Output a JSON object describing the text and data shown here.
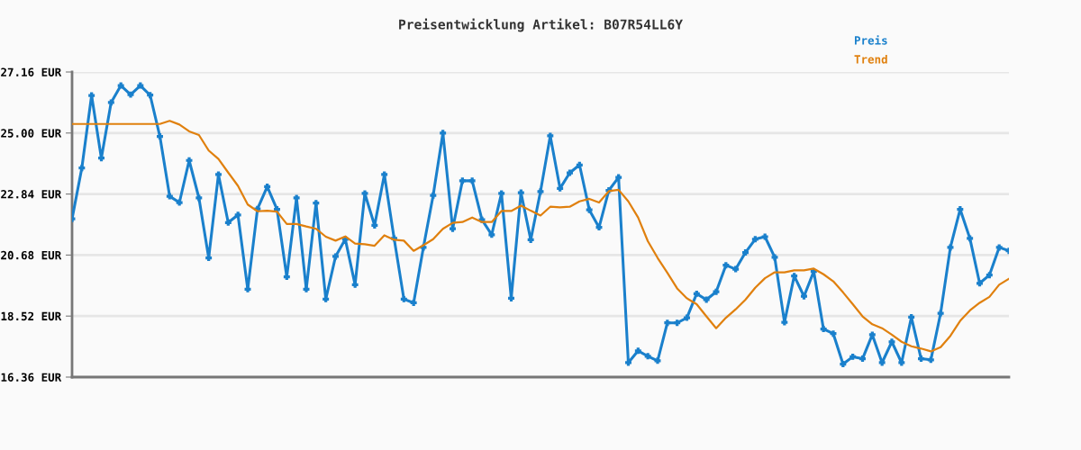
{
  "chart_data": {
    "type": "line",
    "title": "Preisentwicklung Artikel: B07R54LL6Y",
    "categories": [
      null,
      null,
      null,
      null,
      null,
      null,
      null,
      null,
      null,
      null,
      null,
      null,
      null,
      null,
      null,
      null,
      null,
      null,
      null,
      null,
      null,
      null,
      null,
      null,
      null,
      null,
      null,
      null,
      null,
      null,
      null,
      null,
      null,
      null,
      null,
      null,
      null,
      null,
      null,
      null,
      null,
      null,
      null,
      null,
      null,
      null,
      null,
      null,
      null,
      null,
      null,
      null,
      null,
      null,
      null,
      null,
      null,
      null,
      null,
      null,
      null,
      null,
      null,
      null,
      null,
      null,
      null,
      null,
      null,
      null,
      null,
      null,
      null,
      null,
      null,
      null,
      null,
      null,
      null,
      null,
      null,
      null,
      null,
      null,
      null,
      null,
      null,
      null,
      null,
      null,
      null,
      null,
      null,
      null,
      null,
      null,
      null
    ],
    "series": [
      {
        "name": "Preis",
        "color": "#1a80cc",
        "marker": "cross",
        "values": [
          21.96,
          23.76,
          26.33,
          24.11,
          26.08,
          26.68,
          26.36,
          26.68,
          26.34,
          24.88,
          22.76,
          22.54,
          24.03,
          22.7,
          20.58,
          23.53,
          21.83,
          22.1,
          19.47,
          22.31,
          23.1,
          22.3,
          19.91,
          22.7,
          19.47,
          22.52,
          19.12,
          20.63,
          21.24,
          19.63,
          22.86,
          21.73,
          23.53,
          21.27,
          19.12,
          18.99,
          20.95,
          22.79,
          25.0,
          21.61,
          23.31,
          23.31,
          21.93,
          21.4,
          22.86,
          19.15,
          22.89,
          21.22,
          22.93,
          24.9,
          23.04,
          23.59,
          23.87,
          22.28,
          21.66,
          22.97,
          23.43,
          16.87,
          17.29,
          17.1,
          16.94,
          18.28,
          18.28,
          18.46,
          19.31,
          19.1,
          19.38,
          20.32,
          20.18,
          20.77,
          21.24,
          21.33,
          20.6,
          18.3,
          19.94,
          19.22,
          20.1,
          18.06,
          17.9,
          16.82,
          17.08,
          17.01,
          17.86,
          16.87,
          17.61,
          16.87,
          18.48,
          17.01,
          16.97,
          18.62,
          20.95,
          22.3,
          21.27,
          19.68,
          19.97,
          20.95,
          20.83
        ]
      },
      {
        "name": "Trend",
        "color": "#e0800e",
        "marker": "none",
        "values": [
          25.32,
          25.32,
          25.32,
          25.32,
          25.32,
          25.32,
          25.32,
          25.32,
          25.32,
          25.32,
          25.43,
          25.3,
          25.06,
          24.93,
          24.38,
          24.08,
          23.6,
          23.13,
          22.47,
          22.23,
          22.25,
          22.22,
          21.78,
          21.78,
          21.69,
          21.61,
          21.33,
          21.19,
          21.34,
          21.09,
          21.06,
          21.01,
          21.38,
          21.22,
          21.19,
          20.83,
          21.03,
          21.24,
          21.61,
          21.82,
          21.85,
          22.01,
          21.85,
          21.85,
          22.24,
          22.24,
          22.43,
          22.25,
          22.08,
          22.39,
          22.37,
          22.39,
          22.58,
          22.67,
          22.54,
          22.94,
          22.99,
          22.58,
          22.01,
          21.17,
          20.58,
          20.05,
          19.5,
          19.15,
          18.94,
          18.51,
          18.09,
          18.46,
          18.76,
          19.1,
          19.52,
          19.86,
          20.07,
          20.07,
          20.14,
          20.14,
          20.2,
          20.0,
          19.75,
          19.36,
          18.94,
          18.51,
          18.23,
          18.09,
          17.86,
          17.61,
          17.45,
          17.37,
          17.27,
          17.42,
          17.82,
          18.35,
          18.72,
          18.99,
          19.2,
          19.63,
          19.84
        ]
      }
    ],
    "ylim": [
      16.36,
      27.16
    ],
    "yticks": [
      {
        "value": 16.36,
        "label": "16.36 EUR"
      },
      {
        "value": 18.52,
        "label": "18.52 EUR"
      },
      {
        "value": 20.68,
        "label": "20.68 EUR"
      },
      {
        "value": 22.84,
        "label": "22.84 EUR"
      },
      {
        "value": 25.0,
        "label": "25.00 EUR"
      },
      {
        "value": 27.16,
        "label": "27.16 EUR"
      }
    ],
    "grid": "y",
    "legend": "top right",
    "tick_labels": "y",
    "line_style": "solid"
  }
}
